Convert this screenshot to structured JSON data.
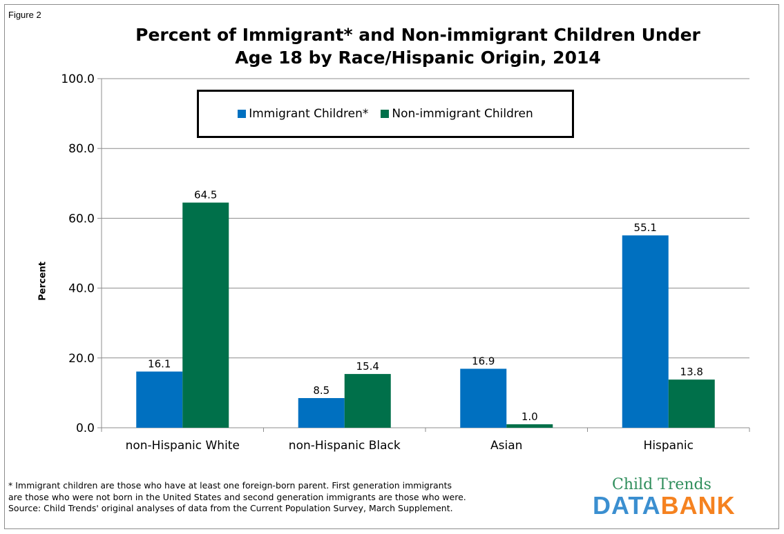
{
  "figure_label": "Figure 2",
  "chart_data": {
    "type": "bar",
    "title": "Percent of Immigrant* and Non-immigrant Children Under Age 18 by Race/Hispanic Origin, 2014",
    "title_lines": [
      "Percent of Immigrant* and Non-immigrant Children Under",
      "Age 18 by Race/Hispanic Origin, 2014"
    ],
    "xlabel": "",
    "ylabel": "Percent",
    "ylim": [
      0,
      100
    ],
    "yticks": [
      "0.0",
      "20.0",
      "40.0",
      "60.0",
      "80.0",
      "100.0"
    ],
    "grid": true,
    "legend_position": "top-center",
    "categories": [
      "non-Hispanic White",
      "non-Hispanic Black",
      "Asian",
      "Hispanic"
    ],
    "series": [
      {
        "name": "Immigrant Children*",
        "color": "#0070c0",
        "values": [
          16.1,
          8.5,
          16.9,
          55.1
        ],
        "labels": [
          "16.1",
          "8.5",
          "16.9",
          "55.1"
        ]
      },
      {
        "name": "Non-immigrant Children",
        "color": "#00704a",
        "values": [
          64.5,
          15.4,
          1.0,
          13.8
        ],
        "labels": [
          "64.5",
          "15.4",
          "1.0",
          "13.8"
        ]
      }
    ]
  },
  "footnote": {
    "line1": "* Immigrant children are those who have at least one foreign-born parent.  First generation immigrants",
    "line2": "are those who were not born in the United States and second generation immigrants are those who were.",
    "line3": "Source: Child Trends' original analyses of data from the  Current Population Survey, March Supplement."
  },
  "logo": {
    "top": "Child Trends",
    "bottom_part1": "DATA",
    "bottom_part2": "BANK"
  }
}
